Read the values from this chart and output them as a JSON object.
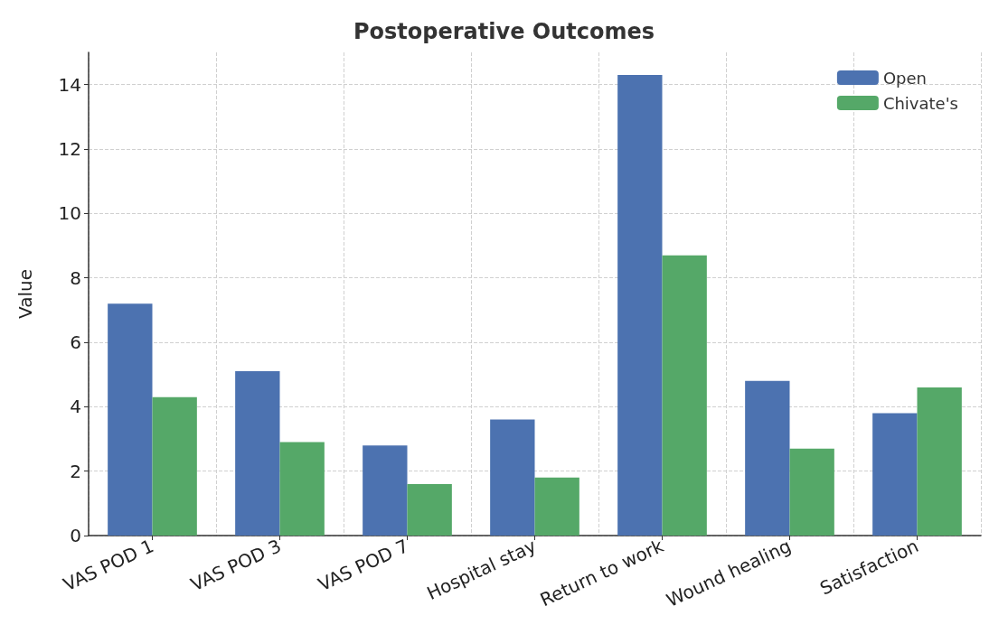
{
  "chart_data": {
    "type": "bar",
    "title": "Postoperative Outcomes",
    "ylabel": "Value",
    "categories": [
      "VAS POD 1",
      "VAS POD 3",
      "VAS POD 7",
      "Hospital stay",
      "Return to work",
      "Wound healing",
      "Satisfaction"
    ],
    "series": [
      {
        "name": "Open",
        "color": "#4c72b0",
        "values": [
          7.2,
          5.1,
          2.8,
          3.6,
          14.3,
          4.8,
          3.8
        ]
      },
      {
        "name": "Chivate's",
        "color": "#55a868",
        "values": [
          4.3,
          2.9,
          1.6,
          1.8,
          8.7,
          2.7,
          4.6
        ]
      }
    ],
    "ylim": [
      0,
      15
    ],
    "yticks": [
      0,
      2,
      4,
      6,
      8,
      10,
      12,
      14
    ],
    "grid": true,
    "legend": "top right"
  }
}
